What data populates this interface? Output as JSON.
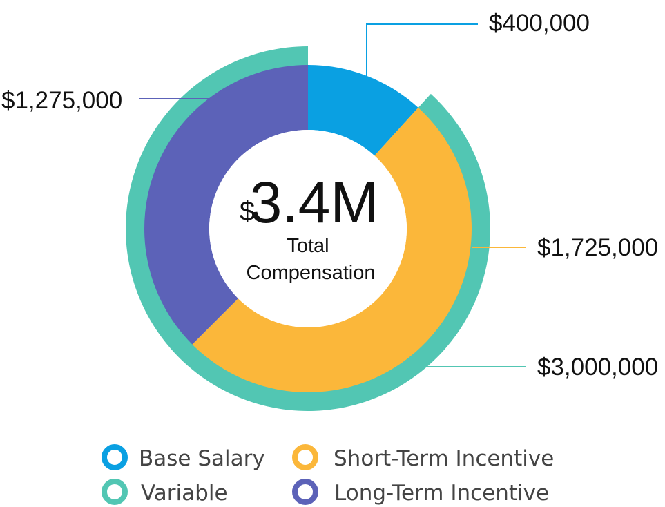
{
  "chart_data": {
    "type": "pie",
    "center_value": {
      "prefix": "$",
      "value": "3.4M",
      "label_line1": "Total",
      "label_line2": "Compensation"
    },
    "outer_ring": [
      {
        "name": "Variable",
        "value": 3000000,
        "label": "$3,000,000",
        "color": "#52c6b3"
      }
    ],
    "inner_ring": [
      {
        "name": "Base Salary",
        "value": 400000,
        "label": "$400,000",
        "color": "#0aa0e2"
      },
      {
        "name": "Short-Term Incentive",
        "value": 1725000,
        "label": "$1,725,000",
        "color": "#fbb73a"
      },
      {
        "name": "Long-Term Incentive",
        "value": 1275000,
        "label": "$1,275,000",
        "color": "#5c62b8"
      }
    ],
    "legend": [
      {
        "name": "Base Salary",
        "color": "#0aa0e2"
      },
      {
        "name": "Short-Term Incentive",
        "color": "#fbb73a"
      },
      {
        "name": "Variable",
        "color": "#52c6b3"
      },
      {
        "name": "Long-Term Incentive",
        "color": "#5c62b8"
      }
    ]
  }
}
